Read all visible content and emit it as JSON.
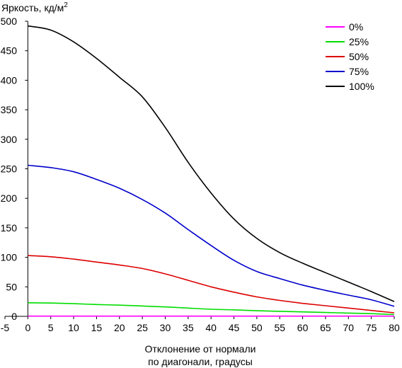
{
  "chart_data": {
    "type": "line",
    "ylabel": "Яркость, кд/м",
    "ylabel_sup": "2",
    "xlabel_line1": "Отклонение от нормали",
    "xlabel_line2": "по диагонали, градусы",
    "xlim": [
      -5,
      80
    ],
    "ylim": [
      0,
      500
    ],
    "xticks": [
      -5,
      0,
      5,
      10,
      15,
      20,
      25,
      30,
      35,
      40,
      45,
      50,
      55,
      60,
      65,
      70,
      75,
      80
    ],
    "yticks": [
      0,
      50,
      100,
      150,
      200,
      250,
      300,
      350,
      400,
      450,
      500
    ],
    "grid": false,
    "legend_position": "top-right",
    "x": [
      0,
      5,
      10,
      15,
      20,
      25,
      30,
      35,
      40,
      45,
      50,
      55,
      60,
      65,
      70,
      75,
      80
    ],
    "series": [
      {
        "name": "0%",
        "color": "#ff00ff",
        "values": [
          0.3,
          0.3,
          0.3,
          0.3,
          0.3,
          0.3,
          0.3,
          0.3,
          0.3,
          0.3,
          0.3,
          0.3,
          0.3,
          0.3,
          0.3,
          0.3,
          0.3
        ]
      },
      {
        "name": "25%",
        "color": "#00dd00",
        "values": [
          23,
          22.5,
          21.5,
          20,
          19,
          17.5,
          16,
          14,
          12,
          11,
          9.5,
          8.5,
          7.5,
          6.5,
          5.5,
          4.5,
          3
        ]
      },
      {
        "name": "50%",
        "color": "#dd0000",
        "values": [
          103,
          101,
          97,
          92,
          87,
          81,
          72,
          61,
          50,
          41,
          33,
          27,
          22,
          18,
          14,
          10,
          6
        ]
      },
      {
        "name": "75%",
        "color": "#0000cc",
        "values": [
          256,
          252,
          245,
          232,
          217,
          198,
          175,
          147,
          120,
          95,
          76,
          64,
          53,
          44,
          36,
          28,
          17
        ]
      },
      {
        "name": "100%",
        "color": "#000000",
        "values": [
          492,
          485,
          465,
          437,
          405,
          372,
          320,
          261,
          209,
          165,
          132,
          108,
          90,
          74,
          58,
          42,
          25
        ]
      }
    ]
  }
}
